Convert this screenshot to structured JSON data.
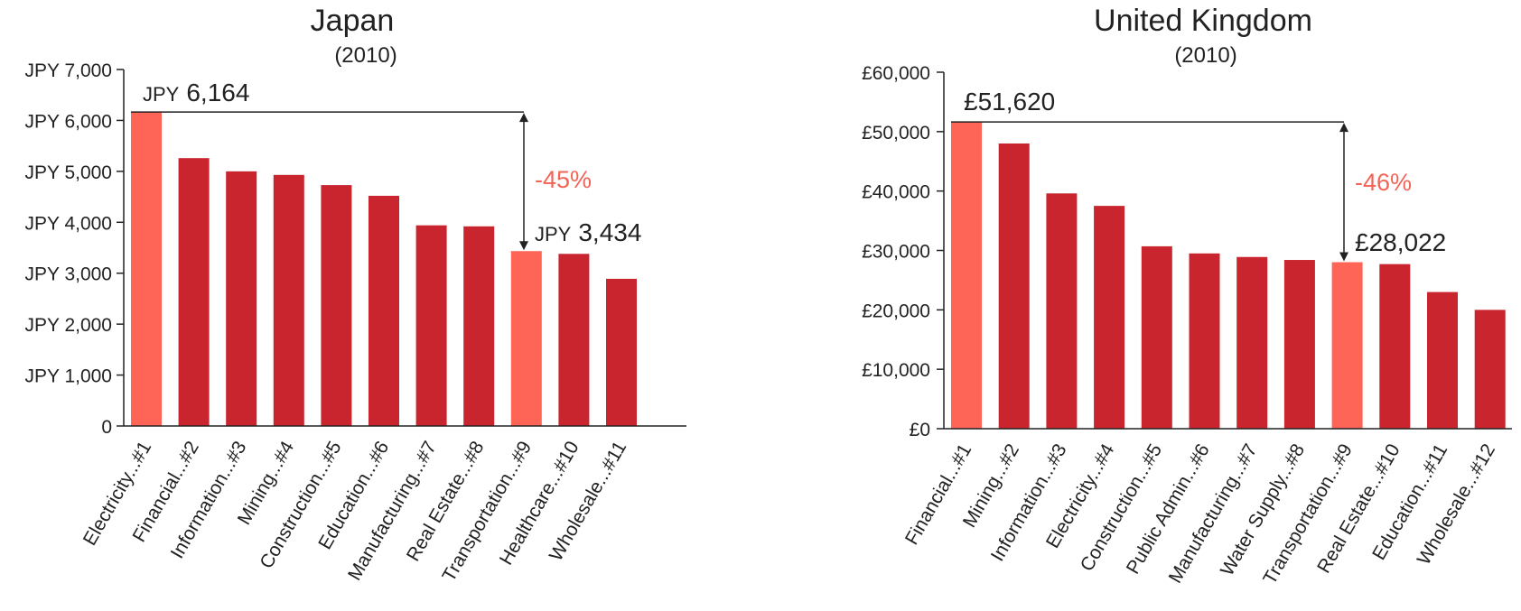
{
  "chart_data": [
    {
      "type": "bar",
      "title": "Japan",
      "subtitle": "(2010)",
      "categories": [
        "Electricity...#1",
        "Financial...#2",
        "Information...#3",
        "Mining...#4",
        "Construction...#5",
        "Education...#6",
        "Manufacturing...#7",
        "Real Estate...#8",
        "Transportation...#9",
        "Healthcare...#10",
        "Wholesale...#11",
        ""
      ],
      "values": [
        6164,
        5260,
        5000,
        4930,
        4730,
        4520,
        3940,
        3920,
        3434,
        3380,
        2890,
        0
      ],
      "highlight": [
        0,
        8
      ],
      "ylim": [
        0,
        7000
      ],
      "yticks": [
        {
          "value": 0,
          "label": "0"
        },
        {
          "value": 1000,
          "label": "JPY 1,000"
        },
        {
          "value": 2000,
          "label": "JPY 2,000"
        },
        {
          "value": 3000,
          "label": "JPY 3,000"
        },
        {
          "value": 4000,
          "label": "JPY 4,000"
        },
        {
          "value": 5000,
          "label": "JPY 5,000"
        },
        {
          "value": 6000,
          "label": "JPY 6,000"
        },
        {
          "value": 7000,
          "label": "JPY 7,000"
        }
      ],
      "annotations": {
        "top": {
          "prefix": "JPY",
          "value": "6,164"
        },
        "bottom": {
          "prefix": "JPY",
          "value": "3,434"
        },
        "change": "-45%"
      }
    },
    {
      "type": "bar",
      "title": "United Kingdom",
      "subtitle": "(2010)",
      "categories": [
        "Financial...#1",
        "Mining...#2",
        "Information...#3",
        "Electricity...#4",
        "Construction...#5",
        "Public Admin...#6",
        "Manufacturing...#7",
        "Water Supply...#8",
        "Transportation...#9",
        "Real Estate...#10",
        "Education...#11",
        "Wholesale...#12"
      ],
      "values": [
        51620,
        48000,
        39600,
        37500,
        30700,
        29500,
        28900,
        28400,
        28022,
        27700,
        23000,
        20000
      ],
      "highlight": [
        0,
        8
      ],
      "ylim": [
        0,
        60000
      ],
      "yticks": [
        {
          "value": 0,
          "label": "£0"
        },
        {
          "value": 10000,
          "label": "£10,000"
        },
        {
          "value": 20000,
          "label": "£20,000"
        },
        {
          "value": 30000,
          "label": "£30,000"
        },
        {
          "value": 40000,
          "label": "£40,000"
        },
        {
          "value": 50000,
          "label": "£50,000"
        },
        {
          "value": 60000,
          "label": "£60,000"
        }
      ],
      "annotations": {
        "top": {
          "prefix": "",
          "value": "£51,620"
        },
        "bottom": {
          "prefix": "",
          "value": "£28,022"
        },
        "change": "-46%"
      }
    }
  ],
  "colors": {
    "bar": "#C8252F",
    "highlight": "#FF6557",
    "change_text": "#F26456",
    "axis": "#222222"
  }
}
